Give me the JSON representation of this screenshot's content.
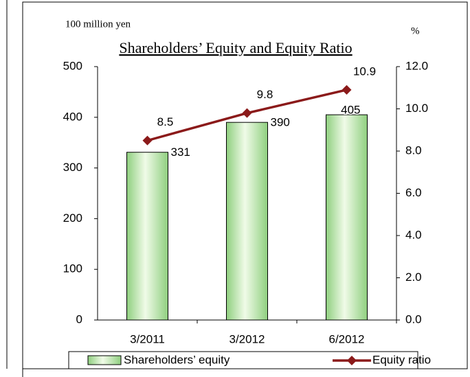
{
  "chart_data": {
    "type": "bar_line",
    "title": "Shareholders’ Equity and Equity Ratio",
    "y_unit": "100 million yen",
    "y2_unit": "%",
    "categories": [
      "3/2011",
      "3/2012",
      "6/2012"
    ],
    "series": [
      {
        "name": "Shareholders’ equity",
        "type": "bar",
        "color": "#8fcf7f",
        "values": [
          331,
          390,
          405
        ]
      },
      {
        "name": "Equity ratio",
        "type": "line",
        "axis": "y2",
        "color": "#8b1a1a",
        "values": [
          8.5,
          9.8,
          10.9
        ]
      }
    ],
    "ylim": [
      0,
      500
    ],
    "yticks": [
      0,
      100,
      200,
      300,
      400,
      500
    ],
    "y2lim": [
      0,
      12
    ],
    "y2ticks": [
      {
        "value": 0,
        "label": "0.0"
      },
      {
        "value": 2,
        "label": "2.0"
      },
      {
        "value": 4,
        "label": "4.0"
      },
      {
        "value": 6,
        "label": "6.0"
      },
      {
        "value": 8,
        "label": "8.0"
      },
      {
        "value": 10,
        "label": "10.0"
      },
      {
        "value": 12,
        "label": "12.0"
      }
    ],
    "legend": "bottom"
  }
}
